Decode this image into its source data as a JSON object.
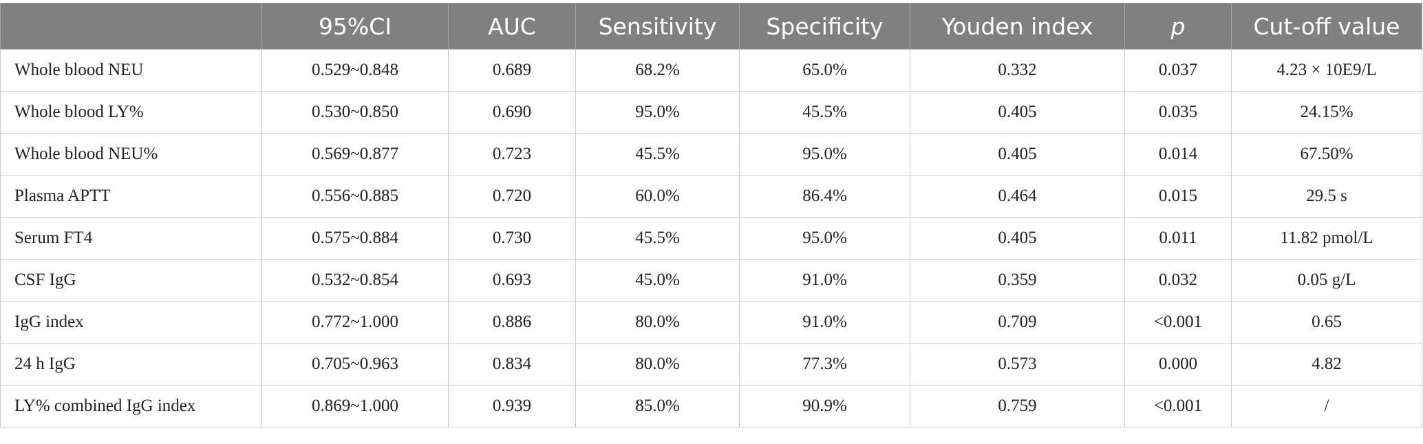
{
  "table": {
    "headers": [
      "",
      "95%CI",
      "AUC",
      "Sensitivity",
      "Specificity",
      "Youden index",
      "p",
      "Cut-off value"
    ],
    "rows": [
      [
        "Whole blood NEU",
        "0.529~0.848",
        "0.689",
        "68.2%",
        "65.0%",
        "0.332",
        "0.037",
        "4.23 × 10E9/L"
      ],
      [
        "Whole blood LY%",
        "0.530~0.850",
        "0.690",
        "95.0%",
        "45.5%",
        "0.405",
        "0.035",
        "24.15%"
      ],
      [
        "Whole blood NEU%",
        "0.569~0.877",
        "0.723",
        "45.5%",
        "95.0%",
        "0.405",
        "0.014",
        "67.50%"
      ],
      [
        "Plasma APTT",
        "0.556~0.885",
        "0.720",
        "60.0%",
        "86.4%",
        "0.464",
        "0.015",
        "29.5 s"
      ],
      [
        "Serum FT4",
        "0.575~0.884",
        "0.730",
        "45.5%",
        "95.0%",
        "0.405",
        "0.011",
        "11.82 pmol/L"
      ],
      [
        "CSF IgG",
        "0.532~0.854",
        "0.693",
        "45.0%",
        "91.0%",
        "0.359",
        "0.032",
        "0.05 g/L"
      ],
      [
        "IgG index",
        "0.772~1.000",
        "0.886",
        "80.0%",
        "91.0%",
        "0.709",
        "<0.001",
        "0.65"
      ],
      [
        "24 h IgG",
        "0.705~0.963",
        "0.834",
        "80.0%",
        "77.3%",
        "0.573",
        "0.000",
        "4.82"
      ],
      [
        "LY% combined IgG index",
        "0.869~1.000",
        "0.939",
        "85.0%",
        "90.9%",
        "0.759",
        "<0.001",
        "/"
      ]
    ]
  }
}
